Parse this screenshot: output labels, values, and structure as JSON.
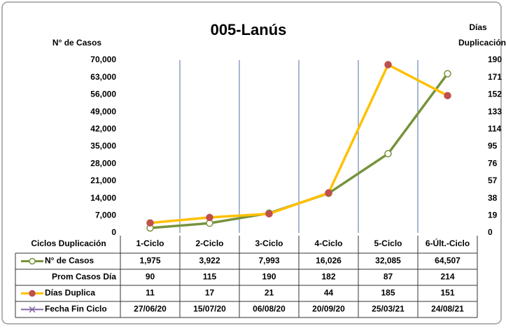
{
  "chart_data": {
    "type": "line",
    "title": "005-Lanús",
    "y_label": "N° de Casos",
    "y2_label_lines": [
      "Días",
      "Duplicación"
    ],
    "table_header": "Ciclos Duplicación",
    "categories": [
      "1-Ciclo",
      "2-Ciclo",
      "3-Ciclo",
      "4-Ciclo",
      "5-Ciclo",
      "6-Últ.-Ciclo"
    ],
    "ylim": [
      0,
      70000
    ],
    "yticks": [
      0,
      {
        "value": 7000,
        "label": "7,000"
      },
      {
        "value": 14000,
        "label": "14,000"
      },
      {
        "value": 21000,
        "label": "21,000"
      },
      {
        "value": 28000,
        "label": "28,000"
      },
      {
        "value": 35000,
        "label": "35,000"
      },
      {
        "value": 42000,
        "label": "42,000"
      },
      {
        "value": 49000,
        "label": "49,000"
      },
      {
        "value": 56000,
        "label": "56,000"
      },
      {
        "value": 63000,
        "label": "63,000"
      },
      {
        "value": 70000,
        "label": "70,000"
      }
    ],
    "y2lim": [
      0,
      190
    ],
    "y2ticks": [
      0,
      19,
      38,
      57,
      76,
      95,
      114,
      133,
      152,
      171,
      190
    ],
    "series": [
      {
        "name": "N° de Casos",
        "color": "#77933c",
        "marker_fill": "#ffffff",
        "axis": "y",
        "values": [
          1975,
          3922,
          7993,
          16026,
          32085,
          64507
        ],
        "value_labels": [
          "1,975",
          "3,922",
          "7,993",
          "16,026",
          "32,085",
          "64,507"
        ]
      },
      {
        "name": "Días Duplica",
        "color": "#ffc000",
        "marker_fill": "#c0504d",
        "axis": "y2",
        "values": [
          11,
          17,
          21,
          44,
          185,
          151
        ]
      }
    ],
    "extra_rows": [
      {
        "name": "Prom Casos Día",
        "values": [
          90,
          115,
          190,
          182,
          87,
          214
        ]
      },
      {
        "name": "Fecha Fin Ciclo",
        "color": "#8064a2",
        "values": [
          "27/06/20",
          "15/07/20",
          "06/08/20",
          "20/09/20",
          "25/03/21",
          "24/08/21"
        ]
      }
    ]
  }
}
